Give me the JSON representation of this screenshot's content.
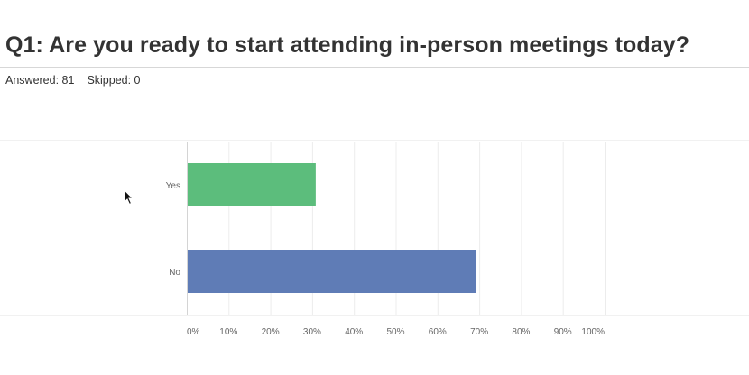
{
  "header": {
    "title": "Q1: Are you ready to start attending in-person meetings today?",
    "answered_label": "Answered: 81",
    "skipped_label": "Skipped: 0"
  },
  "chart_data": {
    "type": "bar",
    "orientation": "horizontal",
    "title": "",
    "xlabel": "",
    "ylabel": "",
    "categories": [
      "Yes",
      "No"
    ],
    "values": [
      30.86,
      69.14
    ],
    "bar_colors": [
      "#5cbd7c",
      "#5f7cb6"
    ],
    "xlim": [
      0,
      100
    ],
    "x_ticks": [
      "0%",
      "10%",
      "20%",
      "30%",
      "40%",
      "50%",
      "60%",
      "70%",
      "80%",
      "90%",
      "100%"
    ],
    "grid": true,
    "legend": "none"
  }
}
